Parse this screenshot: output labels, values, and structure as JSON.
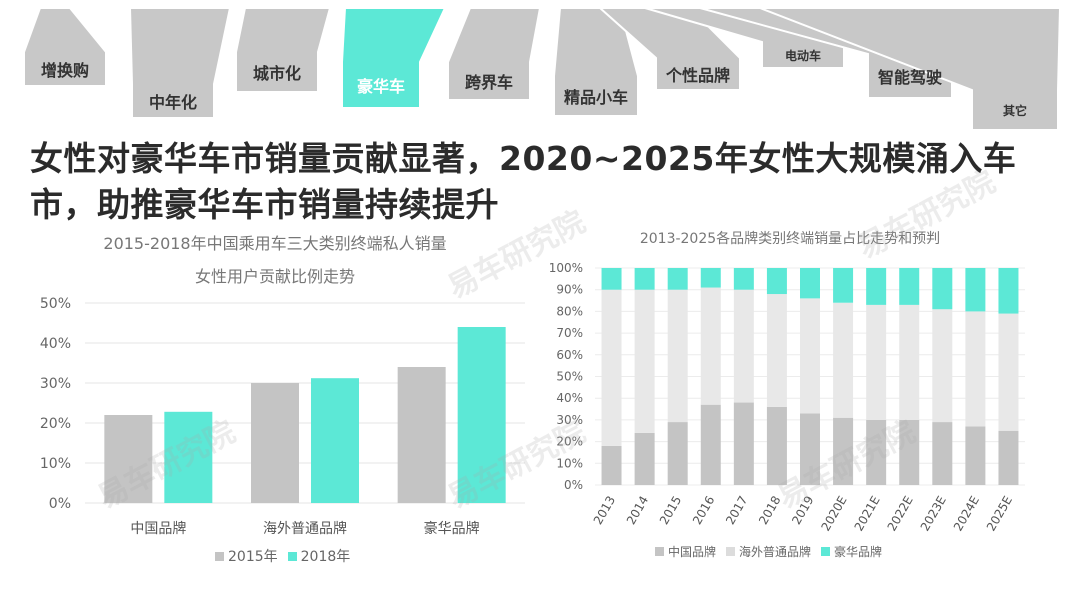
{
  "colors": {
    "china": "#c4c4c4",
    "overseas": "#e8e8e8",
    "luxury": "#5ce8d6",
    "tag_bg": "#c8c8c8",
    "tag_hl": "#5ce8d6"
  },
  "trend_tags": [
    {
      "label": "增换购",
      "highlight": false
    },
    {
      "label": "中年化",
      "highlight": false
    },
    {
      "label": "城市化",
      "highlight": false
    },
    {
      "label": "豪华车",
      "highlight": true
    },
    {
      "label": "跨界车",
      "highlight": false
    },
    {
      "label": "精品小车",
      "highlight": false
    },
    {
      "label": "个性品牌",
      "highlight": false
    },
    {
      "label": "电动车",
      "highlight": false
    },
    {
      "label": "智能驾驶",
      "highlight": false
    },
    {
      "label": "其它",
      "highlight": false
    }
  ],
  "headline": "女性对豪华车市销量贡献显著，2020~2025年女性大规模涌入车市，助推豪华车市销量持续提升",
  "watermark": "易车研究院",
  "chart_data": [
    {
      "type": "bar",
      "title": "2015-2018年中国乘用车三大类别终端私人销量",
      "subtitle": "女性用户贡献比例走势",
      "categories": [
        "中国品牌",
        "海外普通品牌",
        "豪华品牌"
      ],
      "series": [
        {
          "name": "2015年",
          "values": [
            22,
            30,
            34
          ]
        },
        {
          "name": "2018年",
          "values": [
            22.8,
            31.2,
            44
          ]
        }
      ],
      "ylim": [
        0,
        50
      ],
      "yticks": [
        "0%",
        "10%",
        "20%",
        "30%",
        "40%",
        "50%"
      ],
      "grid": true,
      "legend": "bottom"
    },
    {
      "type": "bar",
      "stacked": true,
      "title": "2013-2025各品牌类别终端销量占比走势和预判",
      "categories": [
        "2013",
        "2014",
        "2015",
        "2016",
        "2017",
        "2018",
        "2019",
        "2020E",
        "2021E",
        "2022E",
        "2023E",
        "2024E",
        "2025E"
      ],
      "series": [
        {
          "name": "中国品牌",
          "values": [
            18,
            24,
            29,
            37,
            38,
            36,
            33,
            31,
            30,
            30,
            29,
            27,
            25
          ]
        },
        {
          "name": "海外普通品牌",
          "values": [
            72,
            66,
            61,
            54,
            52,
            52,
            53,
            53,
            53,
            53,
            52,
            53,
            54
          ]
        },
        {
          "name": "豪华品牌",
          "values": [
            10,
            10,
            10,
            9,
            10,
            12,
            14,
            16,
            17,
            17,
            19,
            20,
            21
          ]
        }
      ],
      "ylim": [
        0,
        100
      ],
      "yticks": [
        "0%",
        "10%",
        "20%",
        "30%",
        "40%",
        "50%",
        "60%",
        "70%",
        "80%",
        "90%",
        "100%"
      ],
      "grid": true,
      "legend": "bottom"
    }
  ]
}
